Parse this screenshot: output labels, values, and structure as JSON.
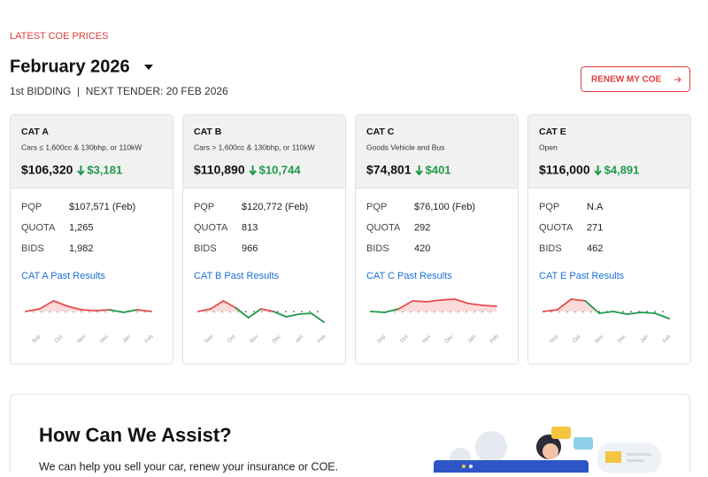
{
  "header": {
    "eyebrow": "LATEST COE PRICES",
    "month": "February 2026",
    "subtitle": "1st BIDDING  |  NEXT TENDER: 20 FEB 2026",
    "button": "RENEW MY COE"
  },
  "cards": [
    {
      "title": "CAT A",
      "desc": "Cars ≤ 1,600cc & 130bhp, or 110kW",
      "price": "$106,320",
      "change": "$3,181",
      "rows": [
        {
          "label": "PQP",
          "value": "$107,571 (Feb)"
        },
        {
          "label": "QUOTA",
          "value": "1,265"
        },
        {
          "label": "BIDS",
          "value": "1,982"
        }
      ],
      "link": "CAT A Past Results",
      "trend": [
        0,
        3,
        12,
        6,
        2,
        1,
        2,
        -1,
        2,
        0
      ]
    },
    {
      "title": "CAT B",
      "desc": "Cars > 1,600cc & 130bhp, or 110kW",
      "price": "$110,890",
      "change": "$10,744",
      "rows": [
        {
          "label": "PQP",
          "value": "$120,772 (Feb)"
        },
        {
          "label": "QUOTA",
          "value": "813"
        },
        {
          "label": "BIDS",
          "value": "966"
        }
      ],
      "link": "CAT B Past Results",
      "trend": [
        0,
        3,
        12,
        4,
        -7,
        3,
        0,
        -6,
        -3,
        -2,
        -12
      ]
    },
    {
      "title": "CAT C",
      "desc": "Goods Vehicle and Bus",
      "price": "$74,801",
      "change": "$401",
      "rows": [
        {
          "label": "PQP",
          "value": "$76,100 (Feb)"
        },
        {
          "label": "QUOTA",
          "value": "292"
        },
        {
          "label": "BIDS",
          "value": "420"
        }
      ],
      "link": "CAT C Past Results",
      "trend": [
        0,
        -1,
        3,
        12,
        11,
        13,
        14,
        9,
        7,
        6
      ]
    },
    {
      "title": "CAT E",
      "desc": "Open",
      "price": "$116,000",
      "change": "$4,891",
      "rows": [
        {
          "label": "PQP",
          "value": "N.A"
        },
        {
          "label": "QUOTA",
          "value": "271"
        },
        {
          "label": "BIDS",
          "value": "462"
        }
      ],
      "link": "CAT E Past Results",
      "trend": [
        0,
        2,
        14,
        12,
        -2,
        0,
        -3,
        -1,
        -2,
        -8
      ]
    }
  ],
  "months": [
    "Sep",
    "Oct",
    "Nov",
    "Dec",
    "Jan",
    "Feb"
  ],
  "assist": {
    "title": "How Can We Assist?",
    "text": "We can help you sell your car, renew your insurance or COE."
  }
}
